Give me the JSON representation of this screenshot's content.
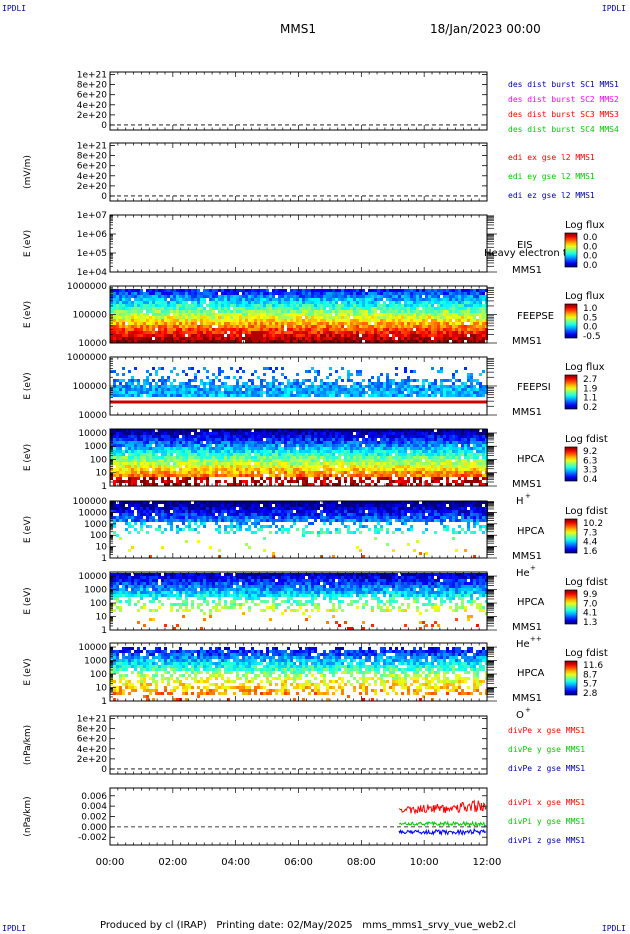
{
  "header": {
    "corner_tl": "IPDLI",
    "corner_tr": "IPDLI",
    "corner_bl": "IPDLI",
    "corner_br": "IPDLI",
    "mission": "MMS1",
    "date": "18/Jan/2023 00:00"
  },
  "footer": {
    "produced_by": "Produced by cl (IRAP)",
    "printing_date": "Printing date: 02/May/2025",
    "script_name": "mms_mms1_srvy_vue_web2.cl"
  },
  "colors": {
    "red": "#ff0000",
    "green": "#00c800",
    "blue": "#0000ff",
    "magenta": "#ff00ff",
    "darkblue": "#0000aa"
  },
  "chart_data": {
    "type": "multi-panel time series and spectrograms",
    "x": {
      "label": "",
      "ticks": [
        "00:00",
        "02:00",
        "04:00",
        "06:00",
        "08:00",
        "10:00",
        "12:00"
      ],
      "range_hours": [
        0,
        12
      ]
    },
    "panels": [
      {
        "id": "p1",
        "type": "line",
        "ylabel": "",
        "yticks": [
          "0",
          "2e+20",
          "4e+20",
          "6e+20",
          "8e+20",
          "1e+21"
        ],
        "ytick_values": [
          0,
          2e+20,
          4e+20,
          6e+20,
          8e+20,
          1e+21
        ],
        "ylim": [
          -1e+20,
          1.05e+21
        ],
        "zero_line": true,
        "legend": [
          {
            "text": "des dist burst SC1 MMS1",
            "color": "#0000aa"
          },
          {
            "text": "des dist burst SC2 MMS2",
            "color": "#ff00ff"
          },
          {
            "text": "des dist burst SC3 MMS3",
            "color": "#ff0000"
          },
          {
            "text": "des dist burst SC4 MMS4",
            "color": "#00c800"
          }
        ]
      },
      {
        "id": "p2",
        "type": "line",
        "ylabel": "(mV/m)",
        "yticks": [
          "0",
          "2e+20",
          "4e+20",
          "6e+20",
          "8e+20",
          "1e+21"
        ],
        "ytick_values": [
          0,
          2e+20,
          4e+20,
          6e+20,
          8e+20,
          1e+21
        ],
        "ylim": [
          -1e+20,
          1.05e+21
        ],
        "zero_line": true,
        "legend": [
          {
            "text": "edi ex gse l2 MMS1",
            "color": "#ff0000"
          },
          {
            "text": "edi ey gse l2 MMS1",
            "color": "#00c800"
          },
          {
            "text": "edi ez gse l2 MMS1",
            "color": "#0000aa"
          }
        ]
      },
      {
        "id": "p3",
        "type": "heatmap-empty",
        "ylabel": "E (eV)",
        "yticks": [
          "1e+04",
          "1e+05",
          "1e+06",
          "1e+07"
        ],
        "log_range": [
          4,
          7
        ],
        "labels": [
          "EIS",
          "MMS1"
        ],
        "overlay_text": "Heavy electron to",
        "colorbar": {
          "title": "Log flux",
          "ticks": [
            "0.0",
            "0.0",
            "0.0",
            "0.0"
          ]
        }
      },
      {
        "id": "p4",
        "type": "heatmap",
        "ylabel": "E (eV)",
        "yticks": [
          "10000",
          "100000",
          "1000000"
        ],
        "log_range": [
          4,
          6
        ],
        "data_log_range": [
          4.5,
          5.85
        ],
        "labels": [
          "FEEPSE",
          "MMS1"
        ],
        "colorbar": {
          "title": "Log flux",
          "ticks": [
            "1.0",
            "0.5",
            "0.0",
            "-0.5"
          ]
        }
      },
      {
        "id": "p5",
        "type": "heatmap",
        "ylabel": "E (eV)",
        "yticks": [
          "10000",
          "100000",
          "1000000"
        ],
        "log_range": [
          4,
          6
        ],
        "data_log_range": [
          4.7,
          5.5
        ],
        "labels": [
          "FEEPSI",
          "MMS1"
        ],
        "colorbar": {
          "title": "Log flux",
          "ticks": [
            "2.7",
            "1.9",
            "1.1",
            "0.2"
          ]
        }
      },
      {
        "id": "p6",
        "type": "heatmap",
        "ylabel": "E (eV)",
        "yticks": [
          "1",
          "10",
          "100",
          "1000",
          "10000"
        ],
        "log_range": [
          0,
          4.3
        ],
        "labels": [
          "HPCA",
          "MMS1",
          "H",
          "+"
        ],
        "colorbar": {
          "title": "Log fdist",
          "ticks": [
            "9.2",
            "6.3",
            "3.3",
            "0.4"
          ]
        }
      },
      {
        "id": "p7",
        "type": "heatmap",
        "ylabel": "E (eV)",
        "yticks": [
          "1",
          "10",
          "100",
          "1000",
          "10000",
          "100000"
        ],
        "log_range": [
          0,
          5
        ],
        "labels": [
          "HPCA",
          "MMS1",
          "He",
          "+"
        ],
        "colorbar": {
          "title": "Log fdist",
          "ticks": [
            "10.2",
            "7.3",
            "4.4",
            "1.6"
          ]
        }
      },
      {
        "id": "p8",
        "type": "heatmap",
        "ylabel": "E (eV)",
        "yticks": [
          "1",
          "10",
          "100",
          "1000",
          "10000"
        ],
        "log_range": [
          0,
          4.3
        ],
        "labels": [
          "HPCA",
          "MMS1",
          "He",
          "++"
        ],
        "colorbar": {
          "title": "Log fdist",
          "ticks": [
            "9.9",
            "7.0",
            "4.1",
            "1.3"
          ]
        }
      },
      {
        "id": "p9",
        "type": "heatmap",
        "ylabel": "E (eV)",
        "yticks": [
          "1",
          "10",
          "100",
          "1000",
          "10000"
        ],
        "log_range": [
          0,
          4.3
        ],
        "labels": [
          "HPCA",
          "MMS1",
          "O",
          "+"
        ],
        "colorbar": {
          "title": "Log fdist",
          "ticks": [
            "11.6",
            "8.7",
            "5.7",
            "2.8"
          ]
        }
      },
      {
        "id": "p10",
        "type": "line",
        "ylabel": "(nPa/km)",
        "yticks": [
          "0",
          "2e+20",
          "4e+20",
          "6e+20",
          "8e+20",
          "1e+21"
        ],
        "ytick_values": [
          0,
          2e+20,
          4e+20,
          6e+20,
          8e+20,
          1e+21
        ],
        "ylim": [
          -1e+20,
          1.05e+21
        ],
        "zero_line": true,
        "legend": [
          {
            "text": "divPe x gse MMS1",
            "color": "#ff0000"
          },
          {
            "text": "divPe y gse MMS1",
            "color": "#00c800"
          },
          {
            "text": "divPe z gse MMS1",
            "color": "#0000aa"
          }
        ]
      },
      {
        "id": "p11",
        "type": "line",
        "ylabel": "(nPa/km)",
        "yticks": [
          "-0.002",
          "0.000",
          "0.002",
          "0.004",
          "0.006"
        ],
        "ytick_values": [
          -0.002,
          0.0,
          0.002,
          0.004,
          0.006
        ],
        "ylim": [
          -0.0035,
          0.0075
        ],
        "zero_line": true,
        "data_start_hour": 9.2,
        "series": [
          {
            "name": "divPi x gse MMS1",
            "color": "#ff0000",
            "mean": 0.0032,
            "amp": 0.0011
          },
          {
            "name": "divPi y gse MMS1",
            "color": "#00c800",
            "mean": 0.0006,
            "amp": 0.0004
          },
          {
            "name": "divPi z gse MMS1",
            "color": "#0000ff",
            "mean": -0.001,
            "amp": 0.0005
          }
        ],
        "legend": [
          {
            "text": "divPi x gse MMS1",
            "color": "#ff0000"
          },
          {
            "text": "divPi y gse MMS1",
            "color": "#00c800"
          },
          {
            "text": "divPi z gse MMS1",
            "color": "#0000aa"
          }
        ]
      }
    ]
  }
}
